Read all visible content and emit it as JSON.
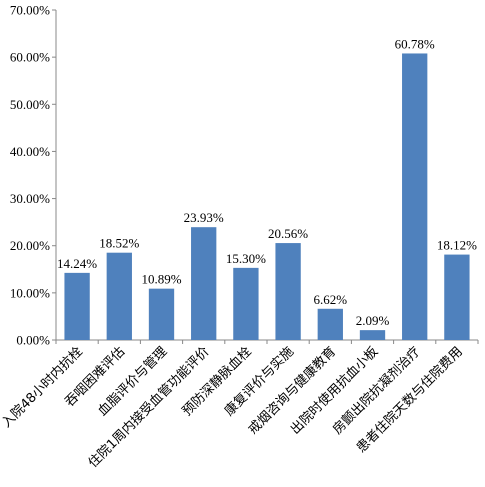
{
  "chart_data": {
    "type": "bar",
    "title": "",
    "xlabel": "",
    "ylabel": "",
    "categories": [
      "入院48小时内抗栓",
      "吞咽困难评估",
      "血脂评价与管理",
      "住院1周内接受血管功能评价",
      "预防深静脉血栓",
      "康复评价与实施",
      "戒烟咨询与健康教育",
      "出院时使用抗血小板",
      "房颤出院抗凝剂治疗",
      "患者住院天数与住院费用"
    ],
    "values": [
      14.24,
      18.52,
      10.89,
      23.93,
      15.3,
      20.56,
      6.62,
      2.09,
      60.78,
      18.12
    ],
    "data_labels": [
      "14.24%",
      "18.52%",
      "10.89%",
      "23.93%",
      "15.30%",
      "20.56%",
      "6.62%",
      "2.09%",
      "60.78%",
      "18.12%"
    ],
    "ylim": [
      0,
      70
    ],
    "yticks": [
      "0.00%",
      "10.00%",
      "20.00%",
      "30.00%",
      "40.00%",
      "50.00%",
      "60.00%",
      "70.00%"
    ],
    "grid": false,
    "legend": "none",
    "bar_color": "#4f81bd"
  }
}
